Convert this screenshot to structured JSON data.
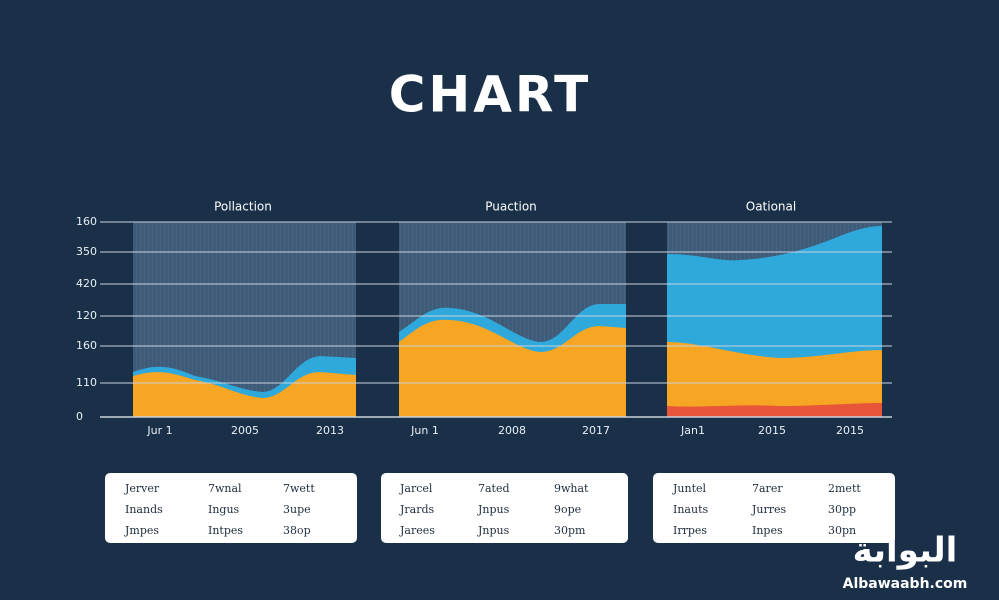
{
  "title": "CHART",
  "axis_labels": [
    "160",
    "350",
    "420",
    "120",
    "160",
    "110",
    "0"
  ],
  "panels": [
    {
      "title": "Pollaction",
      "x_labels": [
        "Jur 1",
        "2005",
        "2013"
      ],
      "table": [
        [
          "Jerver",
          "7wnal",
          "7wett"
        ],
        [
          "Inands",
          "Ingus",
          "3upe"
        ],
        [
          "Jmpes",
          "Intpes",
          "38op"
        ]
      ]
    },
    {
      "title": "Puaction",
      "x_labels": [
        "Jun 1",
        "2008",
        "2017"
      ],
      "table": [
        [
          "Jarcel",
          "7ated",
          "9what"
        ],
        [
          "Jrards",
          "Jnpus",
          "9ope"
        ],
        [
          "Jarees",
          "Jnpus",
          "30pm"
        ]
      ]
    },
    {
      "title": "Oational",
      "x_labels": [
        "Jan1",
        "2015",
        "2015"
      ],
      "table": [
        [
          "Juntel",
          "7arer",
          "2mett"
        ],
        [
          "Inauts",
          "Jurres",
          "30pp"
        ],
        [
          "Irrpes",
          "Inpes",
          "30pn"
        ]
      ]
    }
  ],
  "watermark": {
    "arabic": "البوابة",
    "site": "Albawaabh.com"
  }
}
